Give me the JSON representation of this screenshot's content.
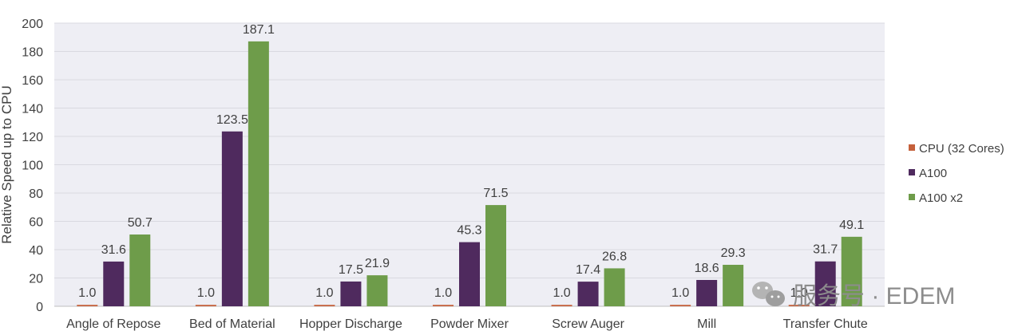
{
  "chart_data": {
    "type": "bar",
    "ylabel": "Relative Speed up to CPU",
    "ylim": [
      0,
      200
    ],
    "yticks": [
      0,
      20,
      40,
      60,
      80,
      100,
      120,
      140,
      160,
      180,
      200
    ],
    "categories": [
      "Angle of Repose",
      "Bed of Material",
      "Hopper Discharge",
      "Powder Mixer",
      "Screw Auger",
      "Mill",
      "Transfer Chute"
    ],
    "series": [
      {
        "name": "CPU (32 Cores)",
        "color": "#c5603b",
        "values": [
          1.0,
          1.0,
          1.0,
          1.0,
          1.0,
          1.0,
          1.0
        ],
        "labels": [
          "1.0",
          "1.0",
          "1.0",
          "1.0",
          "1.0",
          "1.0",
          "1.0"
        ]
      },
      {
        "name": "A100",
        "color": "#4f2a5e",
        "values": [
          31.6,
          123.5,
          17.5,
          45.3,
          17.4,
          18.6,
          31.7
        ],
        "labels": [
          "31.6",
          "123.5",
          "17.5",
          "45.3",
          "17.4",
          "18.6",
          "31.7"
        ]
      },
      {
        "name": "A100 x2",
        "color": "#6e9c4a",
        "values": [
          50.7,
          187.1,
          21.9,
          71.5,
          26.8,
          29.3,
          49.1
        ],
        "labels": [
          "50.7",
          "187.1",
          "21.9",
          "71.5",
          "26.8",
          "29.3",
          "49.1"
        ]
      }
    ],
    "grid": true,
    "legend": "right",
    "plot_background": "#eeeef4"
  },
  "watermark": {
    "text": "服务号 · EDEM",
    "icon": "wechat-icon"
  }
}
